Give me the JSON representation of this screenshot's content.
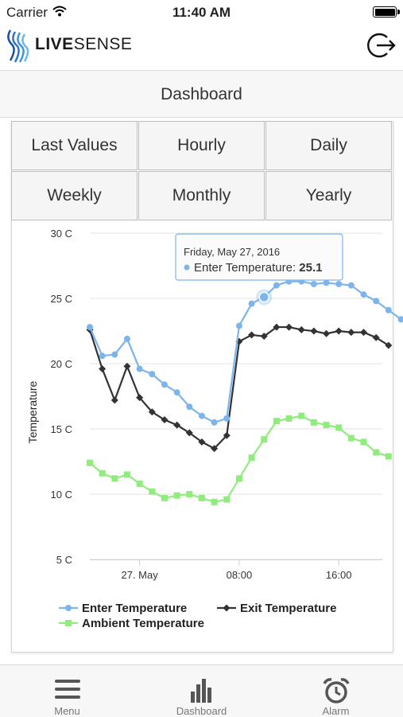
{
  "status_bar": {
    "carrier": "Carrier",
    "time": "11:40 AM"
  },
  "header": {
    "brand_bold": "LIVE",
    "brand_rest": "SENSE"
  },
  "page_title": "Dashboard",
  "period_tabs": [
    "Last Values",
    "Hourly",
    "Daily",
    "Weekly",
    "Monthly",
    "Yearly"
  ],
  "tab_bar": [
    {
      "label": "Menu",
      "icon": "menu-icon"
    },
    {
      "label": "Dashboard",
      "icon": "bar-chart-icon"
    },
    {
      "label": "Alarm",
      "icon": "alarm-clock-icon"
    }
  ],
  "colors": {
    "enter": "#7cb5ec",
    "exit": "#333333",
    "ambient": "#90ed7d"
  },
  "chart_data": {
    "type": "line",
    "ylabel": "Temperature",
    "y_ticks": [
      "30 C",
      "25 C",
      "20 C",
      "15 C",
      "10 C",
      "5 C"
    ],
    "ylim": [
      5,
      30
    ],
    "x_ticks": [
      "27. May",
      "08:00",
      "16:00"
    ],
    "x_tick_hours": [
      0,
      8,
      16
    ],
    "x_range_hours": [
      -4,
      19.5
    ],
    "grid": true,
    "legend_position": "bottom",
    "series": [
      {
        "name": "Enter Temperature",
        "marker": "circle",
        "values": [
          22.8,
          20.6,
          20.7,
          21.9,
          19.6,
          19.2,
          18.4,
          17.8,
          16.7,
          16.0,
          15.5,
          15.8,
          22.9,
          24.6,
          25.1,
          26.0,
          26.3,
          26.3,
          26.1,
          26.2,
          26.1,
          26.0,
          25.3,
          24.8,
          24.1,
          23.4
        ]
      },
      {
        "name": "Exit Temperature",
        "marker": "diamond",
        "values": [
          22.6,
          19.6,
          17.2,
          19.8,
          17.4,
          16.3,
          15.7,
          15.3,
          14.7,
          14.0,
          13.5,
          14.5,
          21.7,
          22.2,
          22.1,
          22.8,
          22.8,
          22.6,
          22.5,
          22.3,
          22.5,
          22.4,
          22.4,
          22.0,
          21.4,
          null
        ]
      },
      {
        "name": "Ambient Temperature",
        "marker": "square",
        "values": [
          12.4,
          11.6,
          11.2,
          11.5,
          10.8,
          10.2,
          9.7,
          9.9,
          10.0,
          9.7,
          9.4,
          9.6,
          11.2,
          12.8,
          14.2,
          15.6,
          15.8,
          16.0,
          15.5,
          15.3,
          15.1,
          14.3,
          14.0,
          13.2,
          12.9,
          null
        ]
      }
    ],
    "x_hours": [
      -4,
      -3,
      -2,
      -1,
      0,
      1,
      2,
      3,
      4,
      5,
      6,
      7,
      8,
      9,
      10,
      11,
      12,
      13,
      14,
      15,
      16,
      17,
      18,
      19,
      20,
      21
    ],
    "exit_x_hours": [
      -4,
      -3,
      -2,
      -1,
      0,
      1,
      2,
      3,
      4,
      5,
      6,
      7,
      8,
      9,
      10,
      11,
      12,
      13,
      14,
      15,
      16,
      17,
      18,
      19,
      20
    ],
    "tooltip": {
      "date": "Friday, May 27, 2016",
      "series": "Enter Temperature:",
      "value": "25.1",
      "hovered_index": 14
    }
  }
}
